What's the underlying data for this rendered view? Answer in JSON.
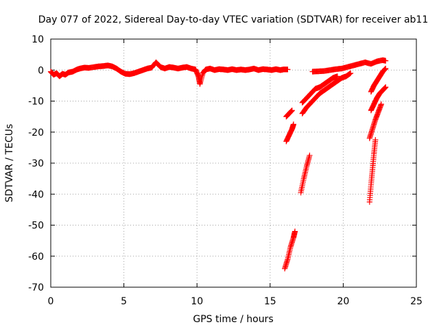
{
  "chart_data": {
    "type": "scatter",
    "title": "Day 077 of 2022, Sidereal Day-to-day VTEC variation (SDTVAR) for receiver ab11",
    "xlabel": "GPS time / hours",
    "ylabel": "SDTVAR / TECUs",
    "xlim": [
      0,
      25
    ],
    "ylim": [
      -70,
      10
    ],
    "xticks": [
      0,
      5,
      10,
      15,
      20,
      25
    ],
    "yticks": [
      10,
      0,
      -10,
      -20,
      -30,
      -40,
      -50,
      -60,
      -70
    ],
    "grid": true,
    "marker": "plus",
    "color": "#ff0000",
    "series": [
      {
        "points": [
          [
            0,
            -0.5
          ],
          [
            0.2,
            -1.5
          ],
          [
            0.4,
            -1.0
          ],
          [
            0.6,
            -2.0
          ],
          [
            0.8,
            -1.2
          ],
          [
            1.0,
            -1.5
          ],
          [
            1.2,
            -0.8
          ],
          [
            1.5,
            -0.5
          ],
          [
            1.8,
            0.2
          ],
          [
            2.0,
            0.5
          ],
          [
            2.3,
            0.8
          ],
          [
            2.6,
            0.7
          ],
          [
            3.0,
            1.0
          ],
          [
            3.3,
            1.2
          ],
          [
            3.6,
            1.3
          ],
          [
            3.9,
            1.5
          ],
          [
            4.2,
            1.2
          ],
          [
            4.5,
            0.5
          ],
          [
            4.8,
            -0.5
          ],
          [
            5.1,
            -1.2
          ],
          [
            5.4,
            -1.3
          ],
          [
            5.7,
            -1.0
          ],
          [
            6.0,
            -0.5
          ],
          [
            6.3,
            0.0
          ],
          [
            6.6,
            0.5
          ],
          [
            6.9,
            0.8
          ],
          [
            7.2,
            2.5
          ],
          [
            7.5,
            1.0
          ],
          [
            7.8,
            0.5
          ],
          [
            8.1,
            1.0
          ],
          [
            8.4,
            0.8
          ],
          [
            8.7,
            0.5
          ],
          [
            9.0,
            0.8
          ],
          [
            9.3,
            1.0
          ],
          [
            9.6,
            0.5
          ],
          [
            9.9,
            0.2
          ],
          [
            10.1,
            -2.0
          ],
          [
            10.2,
            -4.5
          ],
          [
            10.4,
            -1.0
          ],
          [
            10.6,
            0.2
          ],
          [
            10.9,
            0.5
          ],
          [
            11.2,
            0.0
          ],
          [
            11.5,
            0.3
          ],
          [
            11.8,
            0.2
          ],
          [
            12.1,
            0.0
          ],
          [
            12.4,
            0.3
          ],
          [
            12.7,
            0.0
          ],
          [
            13.0,
            0.2
          ],
          [
            13.3,
            0.0
          ],
          [
            13.6,
            0.2
          ],
          [
            13.9,
            0.5
          ],
          [
            14.2,
            0.0
          ],
          [
            14.5,
            0.3
          ],
          [
            14.8,
            0.2
          ],
          [
            15.1,
            0.0
          ],
          [
            15.4,
            0.3
          ],
          [
            15.7,
            0.0
          ],
          [
            15.9,
            0.2
          ],
          [
            16.2,
            0.2
          ]
        ]
      },
      {
        "points": [
          [
            16.1,
            -15.0
          ],
          [
            16.3,
            -14.0
          ],
          [
            16.5,
            -13.0
          ]
        ]
      },
      {
        "points": [
          [
            16.1,
            -23.0
          ],
          [
            16.3,
            -21.0
          ],
          [
            16.5,
            -19.0
          ],
          [
            16.6,
            -17.5
          ]
        ]
      },
      {
        "points": [
          [
            16.0,
            -64.0
          ],
          [
            16.2,
            -61.0
          ],
          [
            16.4,
            -57.0
          ],
          [
            16.6,
            -54.0
          ],
          [
            16.7,
            -52.0
          ]
        ]
      },
      {
        "points": [
          [
            17.1,
            -39.5
          ],
          [
            17.3,
            -35.0
          ],
          [
            17.5,
            -31.0
          ],
          [
            17.7,
            -27.5
          ]
        ]
      },
      {
        "points": [
          [
            17.2,
            -14.0
          ],
          [
            17.5,
            -12.0
          ],
          [
            17.8,
            -10.5
          ],
          [
            18.1,
            -9.0
          ],
          [
            18.4,
            -7.5
          ],
          [
            18.7,
            -6.5
          ],
          [
            19.0,
            -5.5
          ],
          [
            19.3,
            -4.5
          ],
          [
            19.6,
            -3.5
          ],
          [
            19.9,
            -2.5
          ],
          [
            20.2,
            -2.0
          ],
          [
            20.5,
            -1.0
          ]
        ]
      },
      {
        "points": [
          [
            17.2,
            -10.5
          ],
          [
            17.5,
            -9.0
          ],
          [
            17.8,
            -7.5
          ],
          [
            18.1,
            -6.0
          ],
          [
            18.4,
            -5.5
          ],
          [
            18.7,
            -4.5
          ],
          [
            19.0,
            -3.5
          ],
          [
            19.3,
            -2.5
          ],
          [
            19.6,
            -2.0
          ]
        ]
      },
      {
        "points": [
          [
            17.9,
            -0.5
          ],
          [
            18.3,
            -0.4
          ],
          [
            18.7,
            -0.3
          ],
          [
            19.1,
            0.0
          ],
          [
            19.5,
            0.3
          ],
          [
            19.9,
            0.5
          ],
          [
            20.3,
            1.0
          ],
          [
            20.7,
            1.5
          ],
          [
            21.1,
            2.0
          ],
          [
            21.5,
            2.5
          ],
          [
            21.9,
            2.0
          ],
          [
            22.3,
            2.8
          ],
          [
            22.7,
            3.2
          ],
          [
            22.9,
            3.0
          ]
        ]
      },
      {
        "points": [
          [
            21.9,
            -7.0
          ],
          [
            22.1,
            -5.0
          ],
          [
            22.3,
            -3.5
          ],
          [
            22.5,
            -2.0
          ],
          [
            22.7,
            -0.5
          ],
          [
            22.9,
            0.5
          ]
        ]
      },
      {
        "points": [
          [
            21.9,
            -13.0
          ],
          [
            22.1,
            -11.0
          ],
          [
            22.3,
            -9.0
          ],
          [
            22.5,
            -7.5
          ],
          [
            22.7,
            -6.5
          ],
          [
            22.9,
            -5.5
          ]
        ]
      },
      {
        "points": [
          [
            21.8,
            -22.0
          ],
          [
            22.0,
            -19.0
          ],
          [
            22.2,
            -16.0
          ],
          [
            22.4,
            -13.5
          ],
          [
            22.6,
            -11.0
          ]
        ]
      },
      {
        "points": [
          [
            21.8,
            -42.5
          ],
          [
            21.9,
            -37.0
          ],
          [
            22.0,
            -32.0
          ],
          [
            22.1,
            -27.0
          ],
          [
            22.2,
            -22.5
          ]
        ]
      }
    ]
  }
}
